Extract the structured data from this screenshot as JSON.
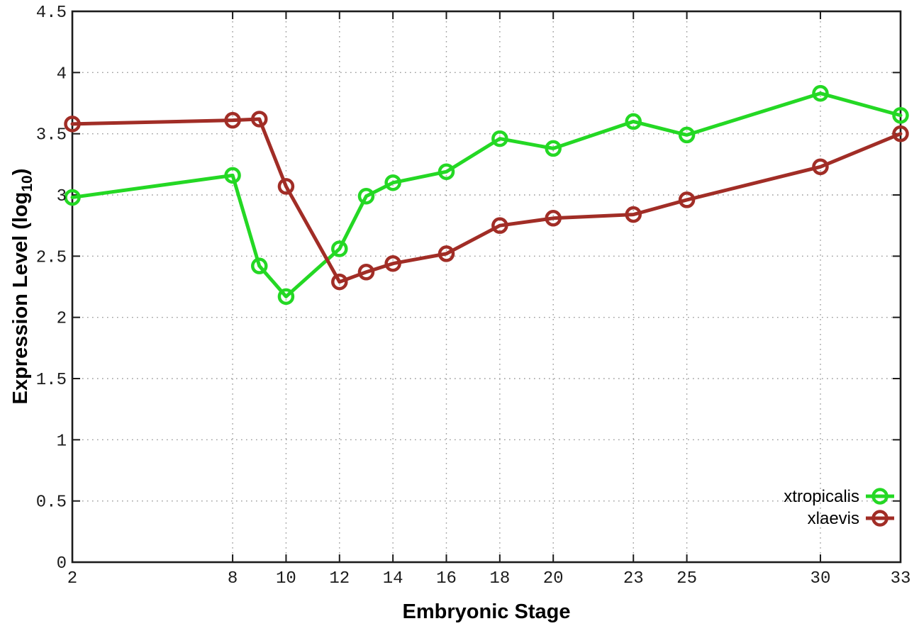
{
  "chart_data": {
    "type": "line",
    "title": "",
    "xlabel": "Embryonic Stage",
    "ylabel": "Expression Level (log10)",
    "ylabel_parts": {
      "main": "Expression Level (log",
      "sub": "10",
      "end": ")"
    },
    "xlim": [
      2,
      33
    ],
    "ylim": [
      0,
      4.5
    ],
    "grid": true,
    "legend_position": "bottom-right-inside",
    "x_ticks": [
      2,
      8,
      10,
      12,
      14,
      16,
      18,
      20,
      23,
      25,
      30,
      33
    ],
    "x_tick_labels": [
      "2",
      "8",
      "10",
      "12",
      "14",
      "16",
      "18",
      "20",
      "23",
      "25",
      "30",
      "33"
    ],
    "y_ticks": [
      0,
      0.5,
      1,
      1.5,
      2,
      2.5,
      3,
      3.5,
      4,
      4.5
    ],
    "y_tick_labels": [
      "0",
      "0.5",
      "1",
      "1.5",
      "2",
      "2.5",
      "3",
      "3.5",
      "4",
      "4.5"
    ],
    "x": [
      2,
      8,
      9,
      10,
      12,
      13,
      14,
      16,
      18,
      20,
      23,
      25,
      30,
      33
    ],
    "series": [
      {
        "name": "xtropicalis",
        "color": "#24d824",
        "marker": "open-circle",
        "values": [
          2.98,
          3.16,
          2.42,
          2.17,
          2.56,
          2.99,
          3.1,
          3.19,
          3.46,
          3.38,
          3.6,
          3.49,
          3.83,
          3.65
        ]
      },
      {
        "name": "xlaevis",
        "color": "#a12d26",
        "marker": "open-circle",
        "values": [
          3.58,
          3.61,
          3.62,
          3.07,
          2.29,
          2.37,
          2.44,
          2.52,
          2.75,
          2.81,
          2.84,
          2.96,
          3.23,
          3.5
        ]
      }
    ],
    "colors": {
      "axis": "#1c1c1c",
      "grid": "#9a9a9a",
      "background": "#ffffff"
    }
  }
}
